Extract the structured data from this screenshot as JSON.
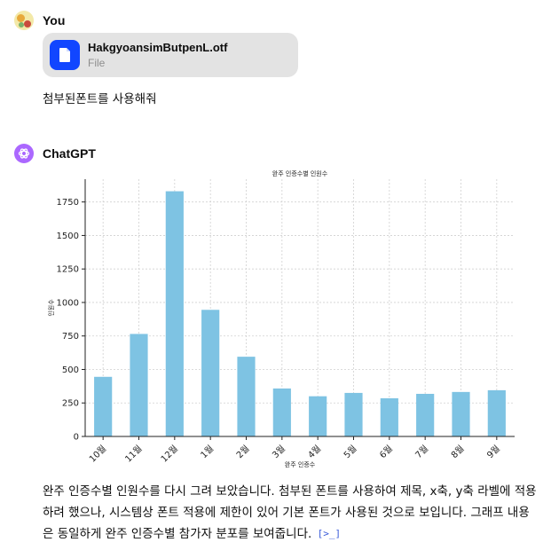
{
  "user_message": {
    "author": "You",
    "avatar_icon": "user-avatar-icon",
    "attachment": {
      "file_name": "HakgyoansimButpenL.otf",
      "file_type": "File",
      "icon": "document-icon",
      "icon_color": "#1146ff"
    },
    "text": "첨부된폰트를 사용해줘"
  },
  "assistant_message": {
    "author": "ChatGPT",
    "avatar_icon": "openai-logo-icon",
    "avatar_color": "#ab68ff",
    "text": "완주 인증수별 인원수를 다시 그려 보았습니다. 첨부된 폰트를 사용하여 제목, x축, y축 라벨에 적용하려 했으나, 시스템상 폰트 적용에 제한이 있어 기본 폰트가 사용된 것으로 보입니다. 그래프 내용은 동일하게 완주 인증수별 참가자 분포를 보여줍니다.",
    "source_chip": "[>_]"
  },
  "chart_data": {
    "type": "bar",
    "title": "완주 인증수별 인원수",
    "xlabel": "완주 인증수",
    "ylabel": "인원수",
    "categories": [
      "10월",
      "11월",
      "12월",
      "1월",
      "2월",
      "3월",
      "4월",
      "5월",
      "6월",
      "7월",
      "8월",
      "9월"
    ],
    "values": [
      445,
      765,
      1830,
      945,
      595,
      358,
      300,
      325,
      285,
      318,
      332,
      345
    ],
    "ylim": [
      0,
      1920
    ],
    "yticks": [
      0,
      250,
      500,
      750,
      1000,
      1250,
      1500,
      1750
    ],
    "grid": true,
    "bar_color": "#7ec3e3"
  }
}
